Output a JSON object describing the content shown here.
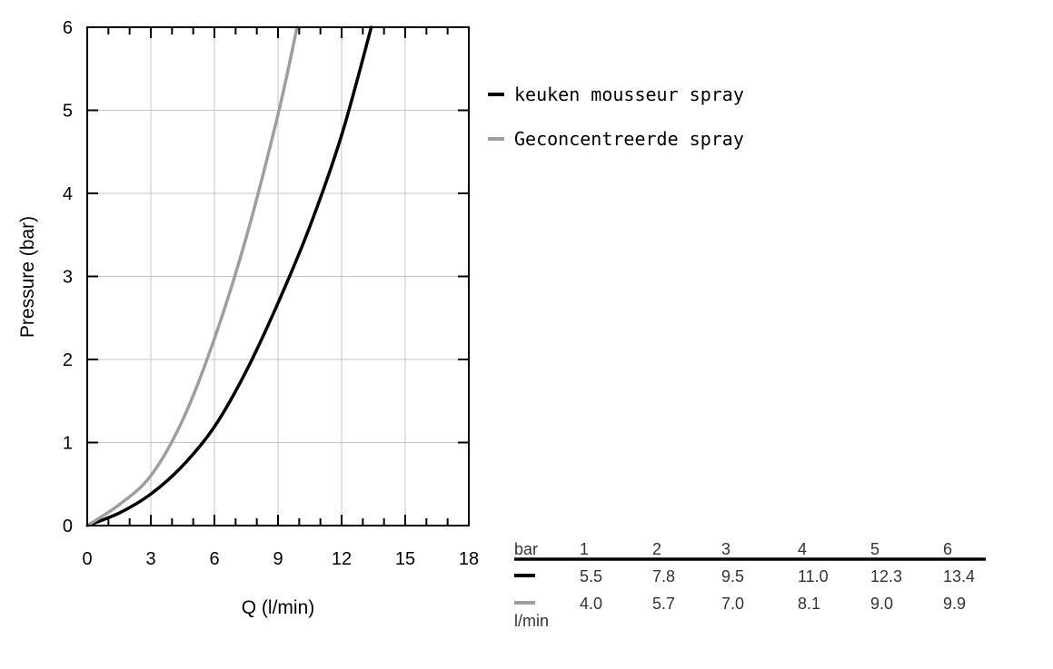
{
  "chart_data": {
    "type": "line",
    "title": "",
    "xlabel": "Q (l/min)",
    "ylabel": "Pressure (bar)",
    "xlim": [
      0,
      18
    ],
    "ylim": [
      0,
      6
    ],
    "x_ticks": [
      0,
      3,
      6,
      9,
      12,
      15,
      18
    ],
    "y_ticks": [
      0,
      1,
      2,
      3,
      4,
      5,
      6
    ],
    "grid": true,
    "legend_position": "right",
    "series": [
      {
        "name": "keuken mousseur spray",
        "color": "#000000",
        "points": [
          [
            0,
            0
          ],
          [
            1.5,
            0.15
          ],
          [
            3,
            0.38
          ],
          [
            4.5,
            0.72
          ],
          [
            6,
            1.19
          ],
          [
            7.5,
            1.86
          ],
          [
            9,
            2.68
          ],
          [
            10.5,
            3.6
          ],
          [
            12,
            4.7
          ],
          [
            13.4,
            6.0
          ]
        ]
      },
      {
        "name": "Geconcentreerde spray",
        "color": "#9e9e9e",
        "points": [
          [
            0,
            0
          ],
          [
            1.5,
            0.25
          ],
          [
            3,
            0.6
          ],
          [
            4.5,
            1.27
          ],
          [
            6,
            2.25
          ],
          [
            7.5,
            3.47
          ],
          [
            9,
            4.95
          ],
          [
            9.9,
            6.0
          ]
        ]
      }
    ],
    "table": {
      "header_label": "bar",
      "units_label": "l/min",
      "pressures": [
        "1",
        "2",
        "3",
        "4",
        "5",
        "6"
      ],
      "rows": [
        {
          "color": "#000000",
          "values": [
            "5.5",
            "7.8",
            "9.5",
            "11.0",
            "12.3",
            "13.4"
          ]
        },
        {
          "color": "#9e9e9e",
          "values": [
            "4.0",
            "5.7",
            "7.0",
            "8.1",
            "9.0",
            "9.9"
          ]
        }
      ]
    }
  }
}
